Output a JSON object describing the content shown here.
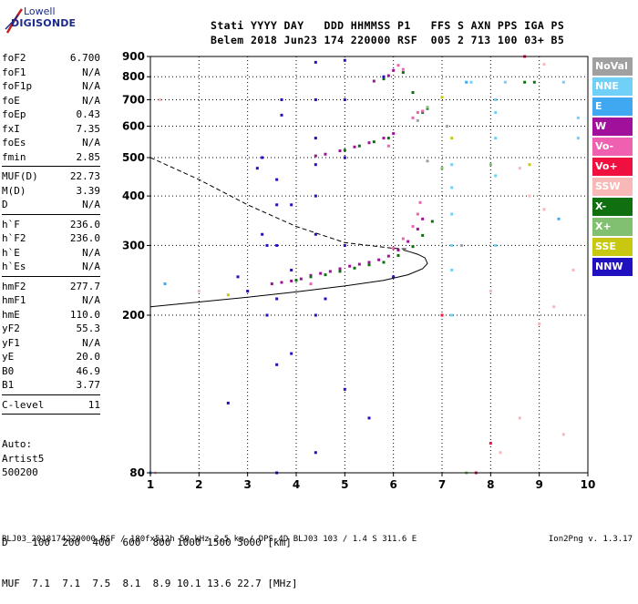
{
  "logo": {
    "line1": "Lowell",
    "line2": "DIGISONDE"
  },
  "header": {
    "row1": "Stati YYYY DAY   DDD HHMMSS P1   FFS S AXN PPS IGA PS",
    "row2": "Belem 2018 Jun23 174 220000 RSF  005 2 713 100 03+ B5"
  },
  "params": {
    "g1": [
      {
        "k": "foF2",
        "v": "6.700"
      },
      {
        "k": "foF1",
        "v": "N/A"
      },
      {
        "k": "foF1p",
        "v": "N/A"
      },
      {
        "k": "foE",
        "v": "N/A"
      },
      {
        "k": "foEp",
        "v": "0.43"
      },
      {
        "k": "fxI",
        "v": "7.35"
      },
      {
        "k": "foEs",
        "v": "N/A"
      },
      {
        "k": "fmin",
        "v": "2.85"
      }
    ],
    "g2": [
      {
        "k": "MUF(D)",
        "v": "22.73"
      },
      {
        "k": "M(D)",
        "v": "3.39"
      },
      {
        "k": "D",
        "v": "N/A"
      }
    ],
    "g3": [
      {
        "k": "h`F",
        "v": "236.0"
      },
      {
        "k": "h`F2",
        "v": "236.0"
      },
      {
        "k": "h`E",
        "v": "N/A"
      },
      {
        "k": "h`Es",
        "v": "N/A"
      }
    ],
    "g4": [
      {
        "k": "hmF2",
        "v": "277.7"
      },
      {
        "k": "hmF1",
        "v": "N/A"
      },
      {
        "k": "hmE",
        "v": "110.0"
      },
      {
        "k": "yF2",
        "v": "55.3"
      },
      {
        "k": "yF1",
        "v": "N/A"
      },
      {
        "k": "yE",
        "v": "20.0"
      },
      {
        "k": "B0",
        "v": "46.9"
      },
      {
        "k": "B1",
        "v": "3.77"
      }
    ],
    "g5": [
      {
        "k": "C-level",
        "v": "11"
      }
    ]
  },
  "auto": {
    "l1": "Auto:",
    "l2": "Artist5",
    "l3": "500200"
  },
  "distances": {
    "row1": "D    100  200  400  600  800 1000 1500 3000 [km]",
    "row2": "MUF  7.1  7.1  7.5  8.1  8.9 10.1 13.6 22.7 [MHz]"
  },
  "footer": {
    "left": "BLJ03_2018174220000.RSF / 180fx512h 50 kHz 2.5 km / DPS-4D BLJ03 103 / 1.4 S 311.6 E",
    "version": "Ion2Png v. 1.3.17"
  },
  "legend": [
    {
      "label": "NoVal",
      "color": "#a0a0a0",
      "fg": "#ffffff"
    },
    {
      "label": "NNE",
      "color": "#70d0f8",
      "fg": "#ffffff"
    },
    {
      "label": "E",
      "color": "#40a8f0",
      "fg": "#ffffff"
    },
    {
      "label": "W",
      "color": "#a0109a",
      "fg": "#ffffff"
    },
    {
      "label": "Vo-",
      "color": "#f060b0",
      "fg": "#ffffff"
    },
    {
      "label": "Vo+",
      "color": "#f01040",
      "fg": "#ffffff"
    },
    {
      "label": "SSW",
      "color": "#f8b8b8",
      "fg": "#ffffff"
    },
    {
      "label": "X-",
      "color": "#107010",
      "fg": "#ffffff"
    },
    {
      "label": "X+",
      "color": "#80c070",
      "fg": "#ffffff"
    },
    {
      "label": "SSE",
      "color": "#c8c810",
      "fg": "#ffffff"
    },
    {
      "label": "NNW",
      "color": "#2010c0",
      "fg": "#ffffff"
    }
  ],
  "chart_data": {
    "type": "scatter",
    "title": "",
    "xlabel": "",
    "ylabel": "",
    "xlim": [
      1,
      10
    ],
    "ylim": [
      80,
      900
    ],
    "yscale": "log",
    "xticks": [
      1,
      2,
      3,
      4,
      5,
      6,
      7,
      8,
      9,
      10
    ],
    "yticks": [
      80,
      200,
      300,
      400,
      500,
      600,
      700,
      800,
      900
    ],
    "grid": true,
    "legend_position": "right",
    "series": [
      {
        "name": "W",
        "color": "#a0109a",
        "points": [
          [
            3.5,
            240
          ],
          [
            3.7,
            242
          ],
          [
            3.9,
            244
          ],
          [
            4.1,
            247
          ],
          [
            4.3,
            252
          ],
          [
            4.5,
            255
          ],
          [
            4.7,
            258
          ],
          [
            4.9,
            262
          ],
          [
            5.1,
            266
          ],
          [
            5.3,
            269
          ],
          [
            5.5,
            272
          ],
          [
            5.7,
            276
          ],
          [
            5.9,
            282
          ],
          [
            6.1,
            292
          ],
          [
            6.3,
            307
          ],
          [
            6.5,
            330
          ],
          [
            6.6,
            350
          ],
          [
            4.4,
            505
          ],
          [
            4.6,
            510
          ],
          [
            4.9,
            520
          ],
          [
            5.2,
            532
          ],
          [
            5.5,
            545
          ],
          [
            5.8,
            560
          ],
          [
            6.0,
            575
          ],
          [
            5.6,
            780
          ],
          [
            5.9,
            805
          ],
          [
            6.0,
            830
          ]
        ]
      },
      {
        "name": "X-",
        "color": "#107010",
        "points": [
          [
            4.0,
            245
          ],
          [
            4.3,
            250
          ],
          [
            4.6,
            253
          ],
          [
            4.9,
            258
          ],
          [
            5.2,
            263
          ],
          [
            5.5,
            268
          ],
          [
            5.8,
            272
          ],
          [
            6.1,
            283
          ],
          [
            6.4,
            298
          ],
          [
            6.6,
            318
          ],
          [
            6.8,
            345
          ],
          [
            5.0,
            522
          ],
          [
            5.3,
            535
          ],
          [
            5.6,
            548
          ],
          [
            5.9,
            560
          ],
          [
            6.6,
            650
          ],
          [
            6.7,
            665
          ],
          [
            6.4,
            730
          ],
          [
            5.8,
            790
          ],
          [
            6.2,
            820
          ],
          [
            8.7,
            775
          ],
          [
            8.9,
            775
          ]
        ]
      },
      {
        "name": "Vo-",
        "color": "#f060b0",
        "points": [
          [
            6.0,
            295
          ],
          [
            6.2,
            312
          ],
          [
            6.4,
            335
          ],
          [
            6.5,
            360
          ],
          [
            6.55,
            385
          ],
          [
            6.4,
            630
          ],
          [
            6.5,
            650
          ],
          [
            6.6,
            655
          ],
          [
            6.2,
            835
          ],
          [
            6.1,
            855
          ],
          [
            4.3,
            240
          ],
          [
            5.9,
            535
          ]
        ]
      },
      {
        "name": "NNE",
        "color": "#70d0f8",
        "points": [
          [
            7.2,
            200
          ],
          [
            7.2,
            260
          ],
          [
            7.2,
            300
          ],
          [
            7.2,
            360
          ],
          [
            7.2,
            420
          ],
          [
            7.2,
            480
          ],
          [
            8.1,
            300
          ],
          [
            8.1,
            450
          ],
          [
            8.1,
            560
          ],
          [
            8.1,
            650
          ],
          [
            8.1,
            700
          ],
          [
            9.8,
            560
          ],
          [
            9.8,
            630
          ],
          [
            7.6,
            775
          ],
          [
            8.3,
            775
          ],
          [
            9.5,
            775
          ]
        ]
      },
      {
        "name": "NNW",
        "color": "#2010c0",
        "points": [
          [
            3.6,
            80
          ],
          [
            3.6,
            150
          ],
          [
            3.6,
            220
          ],
          [
            3.6,
            300
          ],
          [
            3.6,
            380
          ],
          [
            3.6,
            440
          ],
          [
            4.4,
            90
          ],
          [
            4.4,
            200
          ],
          [
            4.4,
            320
          ],
          [
            4.4,
            400
          ],
          [
            4.4,
            480
          ],
          [
            4.4,
            560
          ],
          [
            4.4,
            700
          ],
          [
            4.4,
            870
          ],
          [
            5.0,
            130
          ],
          [
            5.0,
            300
          ],
          [
            5.0,
            500
          ],
          [
            5.0,
            700
          ],
          [
            5.0,
            880
          ],
          [
            3.4,
            200
          ],
          [
            3.4,
            300
          ],
          [
            3.3,
            320
          ],
          [
            3.3,
            500
          ],
          [
            3.9,
            160
          ],
          [
            3.9,
            260
          ],
          [
            3.9,
            380
          ],
          [
            2.6,
            120
          ],
          [
            2.8,
            250
          ],
          [
            3.0,
            230
          ],
          [
            3.2,
            470
          ],
          [
            3.7,
            640
          ],
          [
            3.7,
            700
          ],
          [
            4.6,
            220
          ],
          [
            5.5,
            110
          ],
          [
            5.8,
            800
          ],
          [
            6.0,
            250
          ]
        ]
      },
      {
        "name": "SSW",
        "color": "#f8b8b8",
        "points": [
          [
            1.2,
            700
          ],
          [
            1.1,
            80
          ],
          [
            2.0,
            230
          ],
          [
            8.0,
            230
          ],
          [
            8.2,
            90
          ],
          [
            8.6,
            110
          ],
          [
            8.6,
            470
          ],
          [
            9.0,
            190
          ],
          [
            9.1,
            370
          ],
          [
            9.1,
            860
          ],
          [
            9.3,
            210
          ],
          [
            9.5,
            100
          ],
          [
            9.7,
            260
          ],
          [
            8.8,
            400
          ]
        ]
      },
      {
        "name": "Vo+",
        "color": "#f01040",
        "points": [
          [
            7.0,
            200
          ],
          [
            8.7,
            900
          ],
          [
            7.7,
            80
          ],
          [
            8.0,
            95
          ]
        ]
      },
      {
        "name": "X+",
        "color": "#80c070",
        "points": [
          [
            6.7,
            670
          ],
          [
            7.0,
            470
          ],
          [
            7.5,
            80
          ],
          [
            8.0,
            480
          ]
        ]
      },
      {
        "name": "E",
        "color": "#40a8f0",
        "points": [
          [
            1.0,
            80
          ],
          [
            7.5,
            775
          ],
          [
            9.4,
            350
          ],
          [
            1.3,
            240
          ]
        ]
      },
      {
        "name": "SSE",
        "color": "#c8c810",
        "points": [
          [
            2.6,
            225
          ],
          [
            7.0,
            710
          ],
          [
            7.2,
            560
          ],
          [
            8.8,
            480
          ]
        ]
      },
      {
        "name": "NoVal",
        "color": "#a0a0a0",
        "points": [
          [
            6.5,
            620
          ],
          [
            6.7,
            490
          ],
          [
            7.1,
            600
          ],
          [
            7.4,
            300
          ]
        ]
      }
    ],
    "curves": [
      {
        "name": "profile-solid",
        "style": "solid",
        "points": [
          [
            1.0,
            210
          ],
          [
            2.0,
            216
          ],
          [
            3.0,
            222
          ],
          [
            4.0,
            229
          ],
          [
            5.0,
            237
          ],
          [
            5.8,
            245
          ],
          [
            6.3,
            253
          ],
          [
            6.6,
            262
          ],
          [
            6.7,
            270
          ],
          [
            6.65,
            279
          ],
          [
            6.5,
            285
          ],
          [
            6.3,
            290
          ],
          [
            6.2,
            292
          ]
        ]
      },
      {
        "name": "profile-dashed",
        "style": "dashed",
        "points": [
          [
            1.0,
            500
          ],
          [
            2.0,
            440
          ],
          [
            3.0,
            380
          ],
          [
            4.0,
            335
          ],
          [
            5.0,
            305
          ],
          [
            6.0,
            295
          ],
          [
            6.3,
            294
          ]
        ]
      }
    ]
  }
}
